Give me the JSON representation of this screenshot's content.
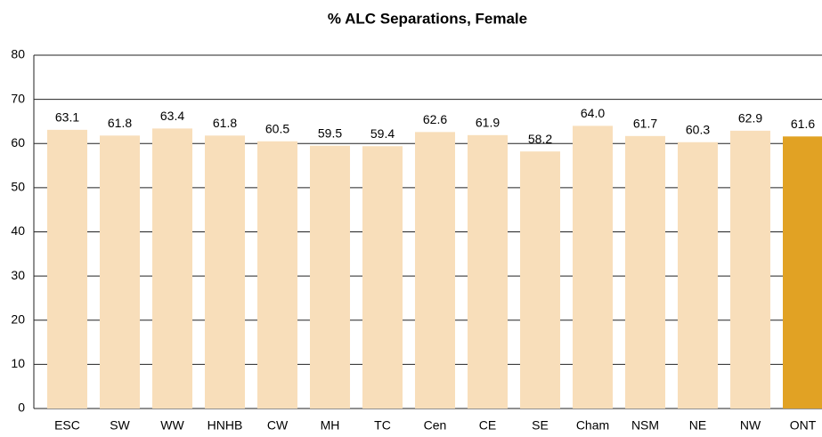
{
  "chart_data": {
    "type": "bar",
    "title": "% ALC Separations, Female",
    "categories": [
      "ESC",
      "SW",
      "WW",
      "HNHB",
      "CW",
      "MH",
      "TC",
      "Cen",
      "CE",
      "SE",
      "Cham",
      "NSM",
      "NE",
      "NW",
      "ONT"
    ],
    "values": [
      63.1,
      61.8,
      63.4,
      61.8,
      60.5,
      59.5,
      59.4,
      62.6,
      61.9,
      58.2,
      64.0,
      61.7,
      60.3,
      62.9,
      61.6
    ],
    "value_labels": [
      "63.1",
      "61.8",
      "63.4",
      "61.8",
      "60.5",
      "59.5",
      "59.4",
      "62.6",
      "61.9",
      "58.2",
      "64.0",
      "61.7",
      "60.3",
      "62.9",
      "61.6"
    ],
    "colors": [
      "#f8deba",
      "#f8deba",
      "#f8deba",
      "#f8deba",
      "#f8deba",
      "#f8deba",
      "#f8deba",
      "#f8deba",
      "#f8deba",
      "#f8deba",
      "#f8deba",
      "#f8deba",
      "#f8deba",
      "#f8deba",
      "#e1a224"
    ],
    "ylim": [
      0,
      80
    ],
    "yticks": [
      0,
      10,
      20,
      30,
      40,
      50,
      60,
      70,
      80
    ],
    "grid": true
  }
}
